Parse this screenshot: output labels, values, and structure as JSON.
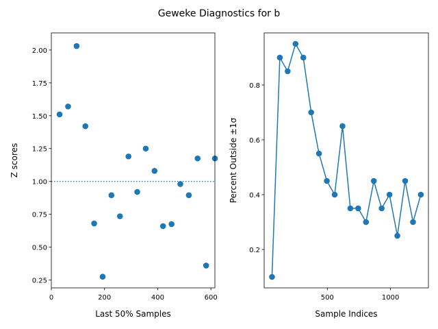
{
  "suptitle": "Geweke Diagnostics for b",
  "colors": {
    "series": "#1f77b4",
    "axis": "#000000",
    "background": "#ffffff"
  },
  "chart_data": [
    {
      "type": "scatter",
      "xlabel": "Last 50% Samples",
      "ylabel": "Z scores",
      "xlim": [
        0,
        615
      ],
      "ylim": [
        0.19,
        2.13
      ],
      "xticks": [
        0,
        200,
        400,
        600
      ],
      "yticks": [
        0.25,
        0.5,
        0.75,
        1.0,
        1.25,
        1.5,
        1.75,
        2.0
      ],
      "ytick_labels": [
        "0.25",
        "0.50",
        "0.75",
        "1.00",
        "1.25",
        "1.50",
        "1.75",
        "2.00"
      ],
      "reference_line": {
        "y": 1.0,
        "style": "dotted"
      },
      "x": [
        31,
        63,
        95,
        128,
        161,
        193,
        226,
        258,
        290,
        323,
        355,
        388,
        420,
        452,
        485,
        517,
        550,
        582,
        615
      ],
      "y": [
        1.51,
        1.57,
        2.03,
        1.42,
        0.68,
        0.275,
        0.895,
        0.735,
        1.19,
        0.92,
        1.25,
        1.08,
        0.66,
        0.675,
        0.98,
        0.895,
        1.175,
        0.36,
        1.175
      ]
    },
    {
      "type": "line",
      "xlabel": "Sample Indices",
      "ylabel": "Percent Outside ±1σ",
      "xlim": [
        0,
        1300
      ],
      "ylim": [
        0.06,
        0.99
      ],
      "xticks": [
        500,
        1000
      ],
      "yticks": [
        0.2,
        0.4,
        0.6,
        0.8
      ],
      "ytick_labels": [
        "0.2",
        "0.4",
        "0.6",
        "0.8"
      ],
      "x": [
        62,
        124,
        186,
        248,
        310,
        372,
        434,
        496,
        558,
        620,
        682,
        744,
        806,
        868,
        930,
        992,
        1054,
        1116,
        1178,
        1240
      ],
      "y": [
        0.1,
        0.9,
        0.85,
        0.95,
        0.9,
        0.7,
        0.55,
        0.45,
        0.4,
        0.65,
        0.35,
        0.35,
        0.3,
        0.45,
        0.35,
        0.4,
        0.25,
        0.45,
        0.3,
        0.4
      ]
    }
  ]
}
